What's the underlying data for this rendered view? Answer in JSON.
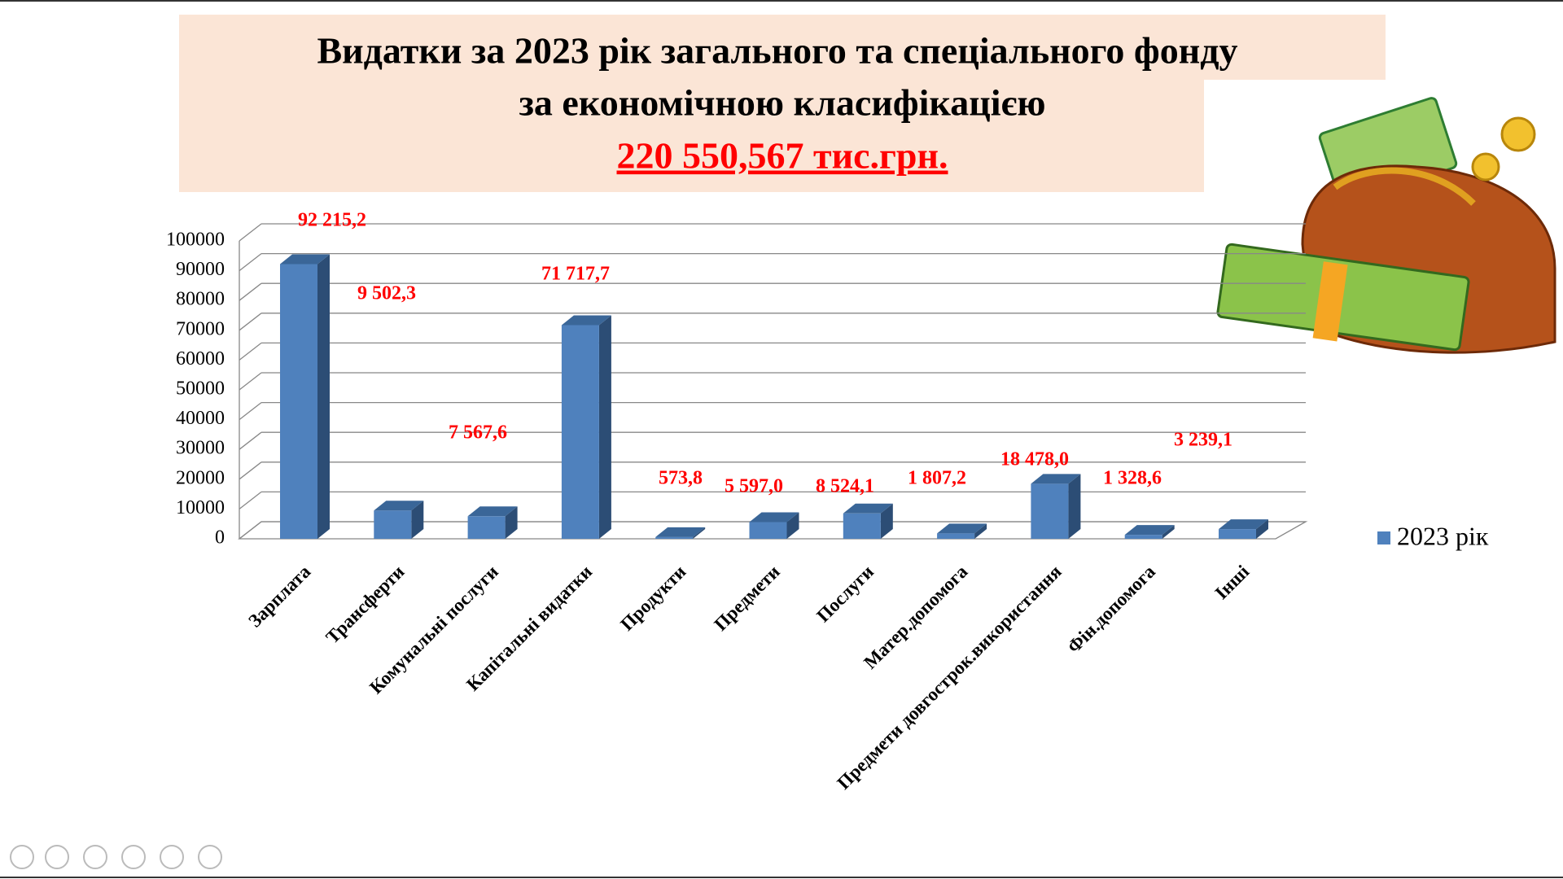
{
  "chart_data": {
    "type": "bar3d",
    "title": "Видатки за 2023 рік загального та спеціального фонду",
    "subtitle": "за економічною класифікацією",
    "total": "220 550,567 тис.грн.",
    "categories": [
      "Зарплата",
      "Трансферти",
      "Комунальні послуги",
      "Капітальні видатки",
      "Продукти",
      "Предмети",
      "Послуги",
      "Матер.допомога",
      "Предмети довгострок.використання",
      "Фін.допомога",
      "Інші"
    ],
    "series": [
      {
        "name": "2023 рік",
        "color": "#4f81bd",
        "values": [
          92215.2,
          9502.3,
          7567.6,
          71717.7,
          573.8,
          5597.0,
          8524.1,
          1807.2,
          18478.0,
          1328.6,
          3239.1
        ],
        "value_labels": [
          "92 215,2",
          "9 502,3",
          "7 567,6",
          "71 717,7",
          "573,8",
          "5 597,0",
          "8 524,1",
          "1 807,2",
          "18 478,0",
          "1 328,6",
          "3 239,1"
        ]
      }
    ],
    "ylim": [
      0,
      100000
    ],
    "yticks": [
      0,
      10000,
      20000,
      30000,
      40000,
      50000,
      60000,
      70000,
      80000,
      90000,
      100000
    ],
    "grid": true,
    "legend": "right"
  }
}
